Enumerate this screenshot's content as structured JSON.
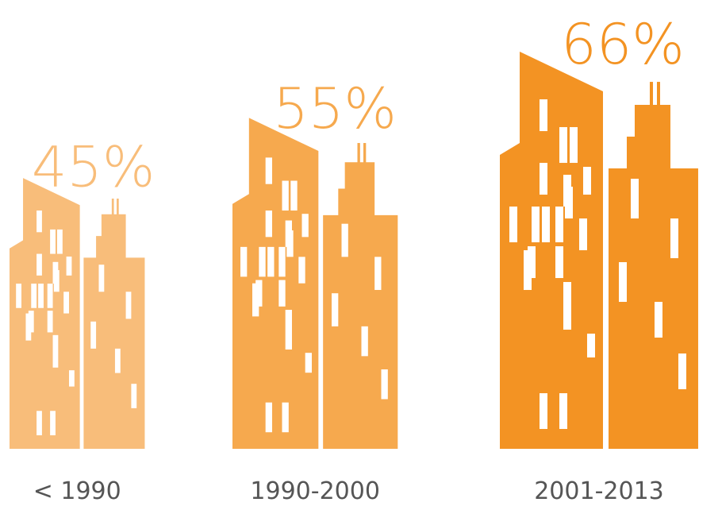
{
  "chart_data": {
    "type": "pictogram",
    "categories": [
      "< 1990",
      "1990-2000",
      "2001-2013"
    ],
    "values": [
      45,
      55,
      66
    ],
    "value_labels": [
      "45%",
      "55%",
      "66%"
    ],
    "colors": [
      "#f8bd7a",
      "#f6a94e",
      "#f39323"
    ]
  }
}
